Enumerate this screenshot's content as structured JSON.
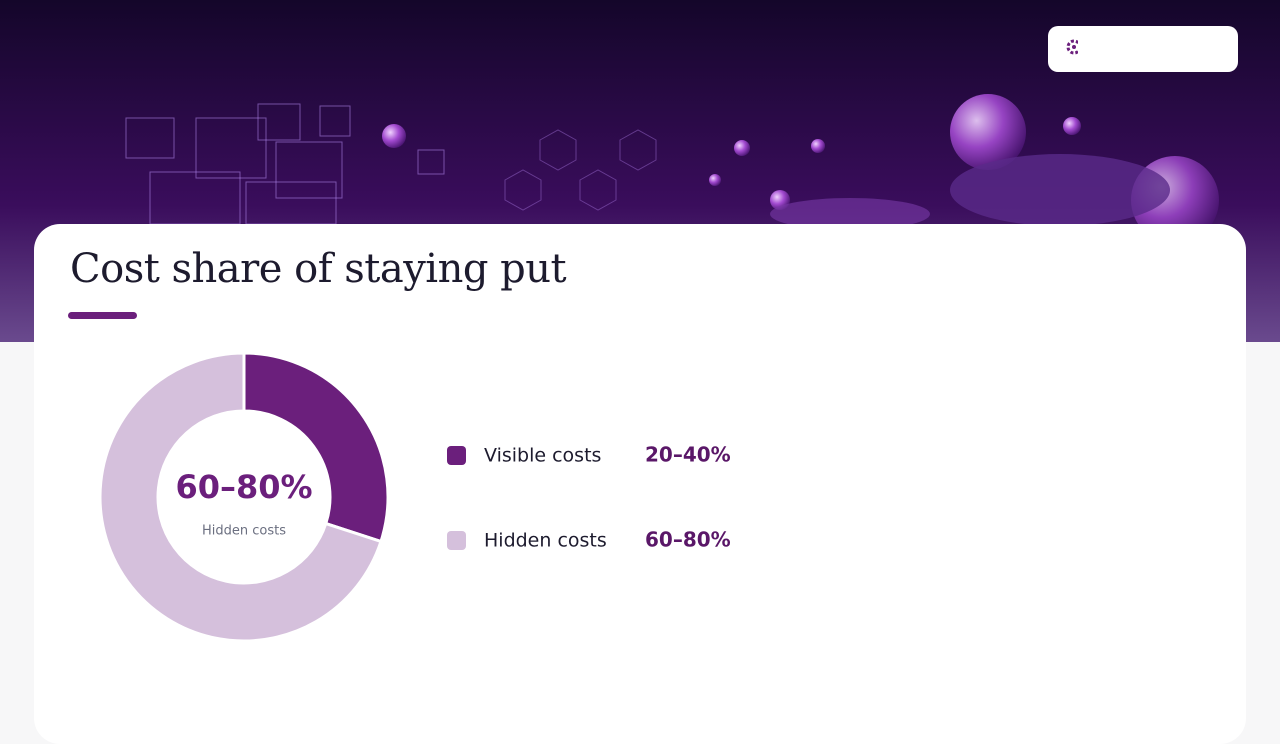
{
  "chart_data": {
    "type": "donut",
    "title": "Cost share of staying put",
    "categories": [
      "Visible costs",
      "Hidden costs"
    ],
    "values": [
      30,
      70
    ],
    "colors": [
      "#6b1f7c",
      "#d5c0dc"
    ],
    "legend_values": [
      "20–40%",
      "60–80%"
    ],
    "center_value": "60–80%",
    "center_label": "Hidden costs"
  }
}
